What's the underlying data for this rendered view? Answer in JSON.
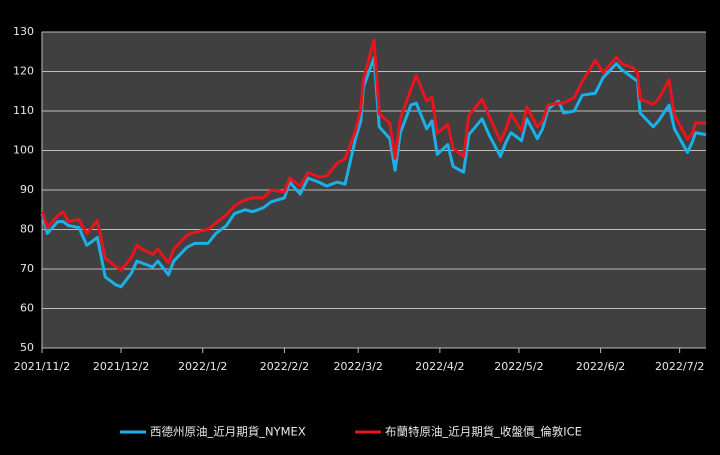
{
  "chart_data": {
    "type": "line",
    "x": [
      "2021/11/2",
      "2021/11/4",
      "2021/11/8",
      "2021/11/10",
      "2021/11/12",
      "2021/11/16",
      "2021/11/19",
      "2021/11/23",
      "2021/11/26",
      "2021/11/30",
      "2021/12/2",
      "2021/12/6",
      "2021/12/8",
      "2021/12/10",
      "2021/12/14",
      "2021/12/16",
      "2021/12/20",
      "2021/12/22",
      "2021/12/27",
      "2021/12/30",
      "2022/1/4",
      "2022/1/7",
      "2022/1/11",
      "2022/1/14",
      "2022/1/18",
      "2022/1/21",
      "2022/1/25",
      "2022/1/28",
      "2022/2/2",
      "2022/2/4",
      "2022/2/8",
      "2022/2/11",
      "2022/2/15",
      "2022/2/18",
      "2022/2/22",
      "2022/2/25",
      "2022/3/1",
      "2022/3/3",
      "2022/3/4",
      "2022/3/8",
      "2022/3/10",
      "2022/3/14",
      "2022/3/16",
      "2022/3/18",
      "2022/3/22",
      "2022/3/24",
      "2022/3/28",
      "2022/3/30",
      "2022/4/1",
      "2022/4/5",
      "2022/4/7",
      "2022/4/11",
      "2022/4/13",
      "2022/4/18",
      "2022/4/21",
      "2022/4/25",
      "2022/4/27",
      "2022/4/29",
      "2022/5/3",
      "2022/5/5",
      "2022/5/9",
      "2022/5/11",
      "2022/5/13",
      "2022/5/17",
      "2022/5/19",
      "2022/5/23",
      "2022/5/26",
      "2022/5/31",
      "2022/6/3",
      "2022/6/8",
      "2022/6/10",
      "2022/6/14",
      "2022/6/16",
      "2022/6/17",
      "2022/6/22",
      "2022/6/24",
      "2022/6/28",
      "2022/6/30",
      "2022/7/5",
      "2022/7/7",
      "2022/7/8",
      "2022/7/12"
    ],
    "series": [
      {
        "name": "西德州原油_近月期貨_NYMEX",
        "color": "#1ab0e8",
        "values": [
          84,
          79,
          82,
          82,
          81,
          80.5,
          76,
          78,
          68,
          66,
          65.5,
          69,
          72,
          71.5,
          70.5,
          72,
          68.5,
          72,
          75.5,
          76.5,
          76.5,
          79,
          81,
          84,
          85,
          84.5,
          85.5,
          87,
          88,
          92,
          89,
          93,
          92,
          91,
          92,
          91.5,
          103,
          107.5,
          116,
          123.5,
          106,
          103,
          95,
          104.5,
          111.5,
          112,
          105.5,
          107.5,
          99,
          101.5,
          96,
          94.5,
          104,
          108,
          103.5,
          98.5,
          102,
          104.5,
          102.5,
          108,
          103,
          105.5,
          110.5,
          112.5,
          109.5,
          110,
          114,
          114.5,
          118.5,
          122,
          120.5,
          118.5,
          117.5,
          109.5,
          106,
          107.5,
          111.5,
          105.5,
          99.5,
          102.5,
          104.5,
          104
        ]
      },
      {
        "name": "布蘭特原油_近月期貨_收盤價_倫敦ICE",
        "color": "#e8141e",
        "values": [
          84.7,
          80.5,
          83.5,
          84.5,
          82,
          82.5,
          78.9,
          82.3,
          72.7,
          70.6,
          69.7,
          73,
          76,
          75,
          73.7,
          75,
          71.5,
          75,
          78.6,
          79.3,
          80,
          81.7,
          83.7,
          86,
          87.5,
          88,
          88,
          90,
          89.5,
          93,
          91,
          94.4,
          93.3,
          93.5,
          96.8,
          97.9,
          105,
          110.5,
          118,
          128,
          109.3,
          106.9,
          98,
          108,
          115.5,
          119,
          112.5,
          113.5,
          104.4,
          106.6,
          100.6,
          98.5,
          108.8,
          113,
          108.3,
          102.3,
          105.3,
          109.3,
          104.97,
          111,
          105.9,
          107.5,
          111.5,
          112,
          112,
          113.4,
          117.4,
          122.8,
          119.7,
          123.6,
          122,
          121,
          119.8,
          113,
          111.7,
          113,
          117.9,
          109,
          102.8,
          104.6,
          107,
          107
        ]
      }
    ],
    "xlim": [
      "2021/11/2",
      "2022/7/12"
    ],
    "xticks": [
      "2021/11/2",
      "2021/12/2",
      "2022/1/2",
      "2022/2/2",
      "2022/3/2",
      "2022/4/2",
      "2022/5/2",
      "2022/6/2",
      "2022/7/2"
    ],
    "ylim": [
      50,
      130
    ],
    "yticks": [
      50,
      60,
      70,
      80,
      90,
      100,
      110,
      120,
      130
    ],
    "grid": true,
    "legend": "bottom"
  }
}
